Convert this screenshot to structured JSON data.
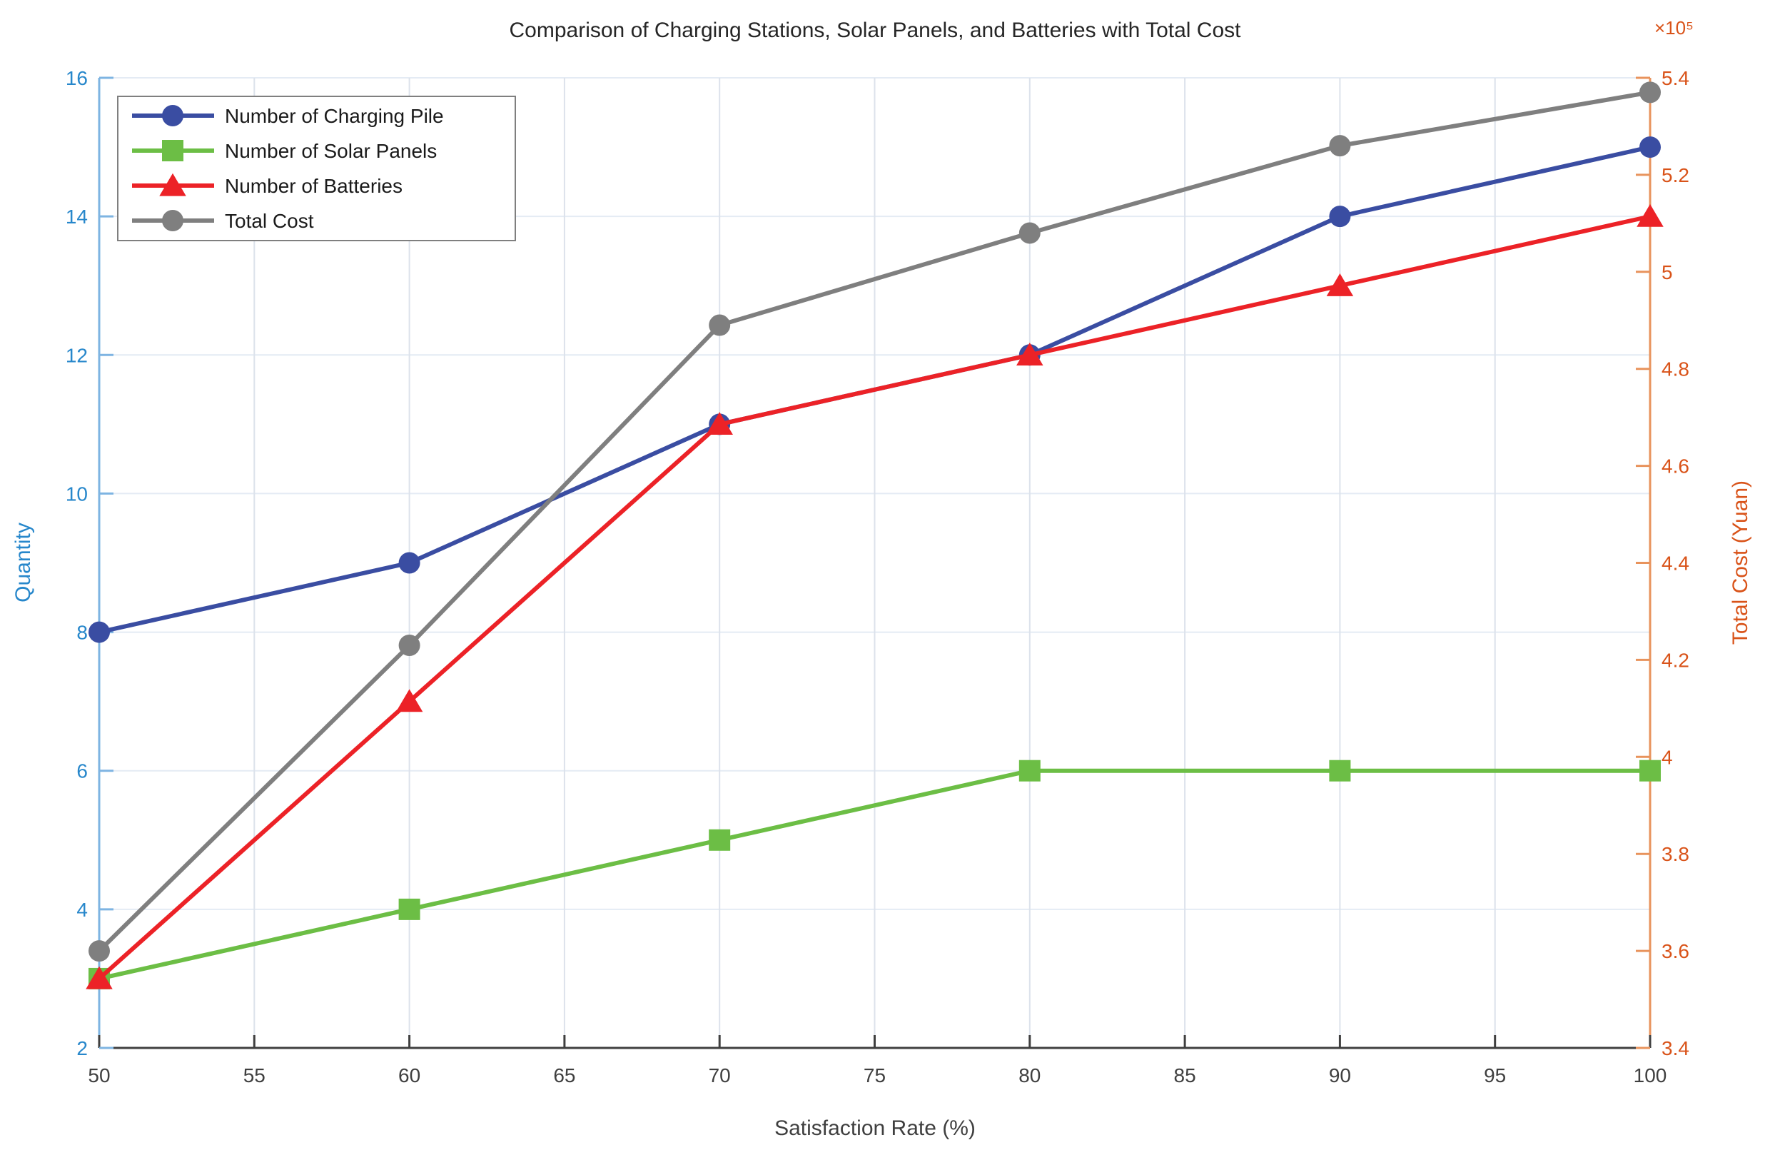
{
  "title": "Comparison of Charging Stations, Solar Panels, and Batteries with Total Cost",
  "axes": {
    "x": {
      "label": "Satisfaction Rate (%)",
      "min": 50,
      "max": 100,
      "tick_step": 5,
      "tick_labels": [
        "50",
        "55",
        "60",
        "65",
        "70",
        "75",
        "80",
        "85",
        "90",
        "95",
        "100"
      ],
      "line_color": "#3f3f3f",
      "tick_label_color": "#3f3f3f"
    },
    "y_left": {
      "label": "Quantity",
      "min": 2,
      "max": 16,
      "tick_step": 2,
      "tick_labels": [
        "2",
        "4",
        "6",
        "8",
        "10",
        "12",
        "14",
        "16"
      ],
      "line_color": "#7EB4E2",
      "tick_label_color": "#2787CB"
    },
    "y_right": {
      "label": "Total Cost (Yuan)",
      "min": 3.4,
      "max": 5.4,
      "tick_step": 0.2,
      "tick_labels": [
        "3.4",
        "3.6",
        "3.8",
        "4",
        "4.2",
        "4.4",
        "4.6",
        "4.8",
        "5",
        "5.2",
        "5.4"
      ],
      "exponent_note": "×10⁵",
      "scale_factor": 100000,
      "line_color": "#E8935C",
      "tick_label_color": "#D95319"
    }
  },
  "grid": {
    "on": true,
    "h_color": "#E4EBF4",
    "v_color": "#DCE2EB"
  },
  "legend": {
    "position": "top-left-inside",
    "border_color": "#7F7F7F",
    "background": "#ffffff",
    "entries": [
      {
        "label": "Number of Charging Pile",
        "color": "#3A4DA2",
        "marker": "circle"
      },
      {
        "label": "Number of Solar Panels",
        "color": "#6CBE45",
        "marker": "square"
      },
      {
        "label": "Number of Batteries",
        "color": "#EC2227",
        "marker": "triangle"
      },
      {
        "label": "Total Cost",
        "color": "#7F7F7F",
        "marker": "circle"
      }
    ]
  },
  "chart_data": {
    "type": "line",
    "x": [
      50,
      60,
      70,
      80,
      90,
      100
    ],
    "xlabel": "Satisfaction Rate (%)",
    "ylabel_left": "Quantity",
    "ylabel_right": "Total Cost (Yuan)",
    "ylim_left": [
      2,
      16
    ],
    "ylim_right": [
      340000,
      540000
    ],
    "legend_position": "top-left",
    "grid": true,
    "series": [
      {
        "name": "Number of Charging Pile",
        "axis": "left",
        "color": "#3A4DA2",
        "marker": "circle",
        "values": [
          8,
          9,
          11,
          12,
          14,
          15
        ]
      },
      {
        "name": "Number of Solar Panels",
        "axis": "left",
        "color": "#6CBE45",
        "marker": "square",
        "values": [
          3,
          4,
          5,
          6,
          6,
          6
        ]
      },
      {
        "name": "Number of Batteries",
        "axis": "left",
        "color": "#EC2227",
        "marker": "triangle",
        "values": [
          3,
          7,
          11,
          12,
          13,
          14
        ]
      },
      {
        "name": "Total Cost",
        "axis": "right",
        "color": "#7F7F7F",
        "marker": "circle",
        "values": [
          360000,
          423000,
          489000,
          508000,
          526000,
          537000
        ]
      }
    ]
  }
}
